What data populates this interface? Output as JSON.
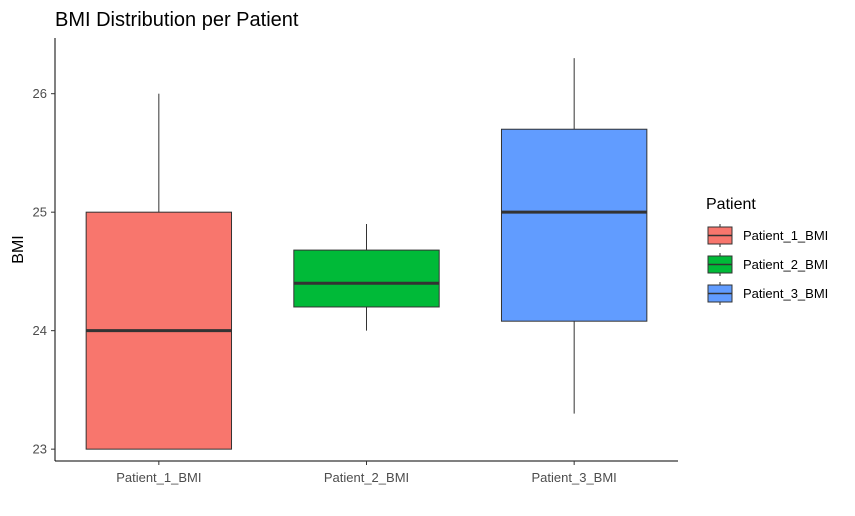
{
  "chart_data": {
    "type": "box",
    "title": "BMI Distribution per Patient",
    "xlabel": "",
    "ylabel": "BMI",
    "ylim": [
      22.9,
      26.47
    ],
    "yticks": [
      23,
      24,
      25,
      26
    ],
    "categories": [
      "Patient_1_BMI",
      "Patient_2_BMI",
      "Patient_3_BMI"
    ],
    "boxes": [
      {
        "category": "Patient_1_BMI",
        "min": 23.0,
        "q1": 23.0,
        "median": 24.0,
        "q3": 25.0,
        "max": 26.0,
        "color": "#F8766D"
      },
      {
        "category": "Patient_2_BMI",
        "min": 24.0,
        "q1": 24.2,
        "median": 24.4,
        "q3": 24.68,
        "max": 24.9,
        "color": "#00BA38"
      },
      {
        "category": "Patient_3_BMI",
        "min": 23.3,
        "q1": 24.08,
        "median": 25.0,
        "q3": 25.7,
        "max": 26.3,
        "color": "#619CFF"
      }
    ],
    "grid": false,
    "legend": {
      "title": "Patient",
      "position": "right",
      "entries": [
        "Patient_1_BMI",
        "Patient_2_BMI",
        "Patient_3_BMI"
      ]
    }
  }
}
